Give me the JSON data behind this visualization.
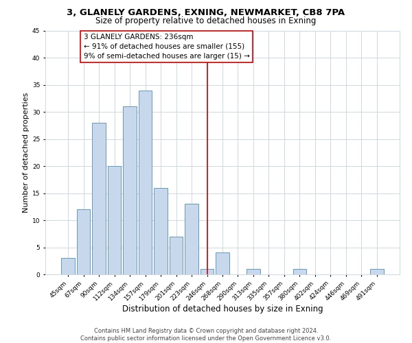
{
  "title": "3, GLANELY GARDENS, EXNING, NEWMARKET, CB8 7PA",
  "subtitle": "Size of property relative to detached houses in Exning",
  "xlabel": "Distribution of detached houses by size in Exning",
  "ylabel": "Number of detached properties",
  "bar_labels": [
    "45sqm",
    "67sqm",
    "90sqm",
    "112sqm",
    "134sqm",
    "157sqm",
    "179sqm",
    "201sqm",
    "223sqm",
    "246sqm",
    "268sqm",
    "290sqm",
    "313sqm",
    "335sqm",
    "357sqm",
    "380sqm",
    "402sqm",
    "424sqm",
    "446sqm",
    "469sqm",
    "491sqm"
  ],
  "bar_heights": [
    3,
    12,
    28,
    20,
    31,
    34,
    16,
    7,
    13,
    1,
    4,
    0,
    1,
    0,
    0,
    1,
    0,
    0,
    0,
    0,
    1
  ],
  "bar_color": "#c8d8ec",
  "bar_edge_color": "#6699bb",
  "vline_x": 9.0,
  "vline_color": "#cc0000",
  "annotation_text": "3 GLANELY GARDENS: 236sqm\n← 91% of detached houses are smaller (155)\n9% of semi-detached houses are larger (15) →",
  "annotation_box_color": "#ffffff",
  "annotation_box_edge": "#cc0000",
  "ylim": [
    0,
    45
  ],
  "yticks": [
    0,
    5,
    10,
    15,
    20,
    25,
    30,
    35,
    40,
    45
  ],
  "footer_line1": "Contains HM Land Registry data © Crown copyright and database right 2024.",
  "footer_line2": "Contains public sector information licensed under the Open Government Licence v3.0.",
  "bg_color": "#ffffff",
  "grid_color": "#ccd8e4",
  "title_fontsize": 9.5,
  "subtitle_fontsize": 8.5,
  "xlabel_fontsize": 8.5,
  "ylabel_fontsize": 8,
  "tick_fontsize": 6.5,
  "annotation_fontsize": 7.5,
  "footer_fontsize": 6
}
